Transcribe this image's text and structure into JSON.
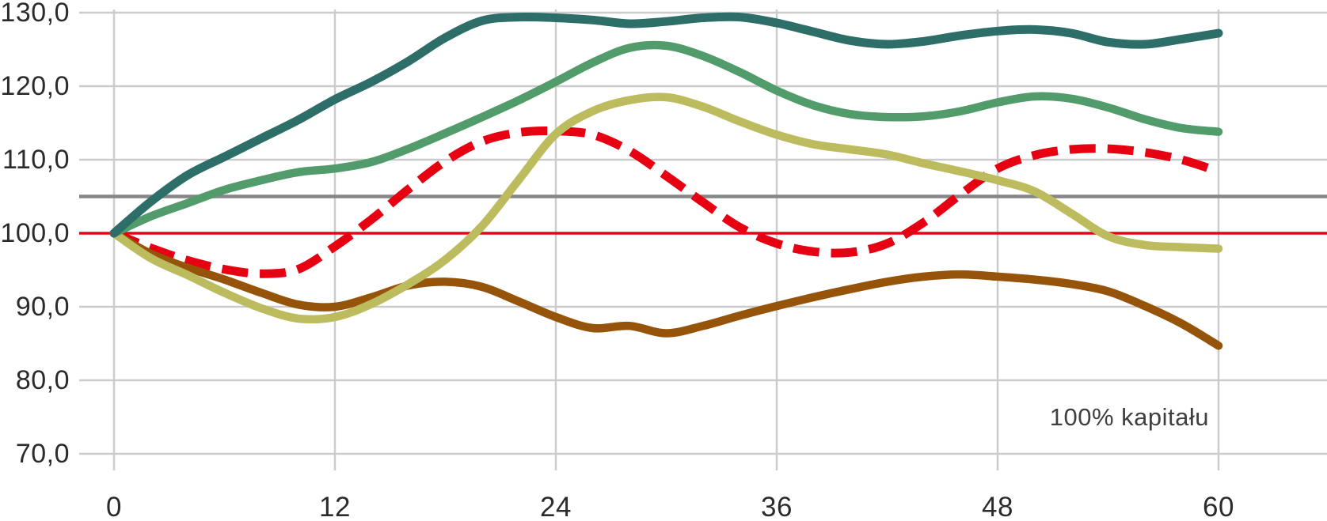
{
  "chart_data": {
    "type": "line",
    "title": "",
    "annotation": "100% kapitału",
    "grid": true,
    "grid_color": "#cbcbcb",
    "label_color": "#2b2b2b",
    "xlim": [
      0,
      60
    ],
    "ylim": [
      70,
      130
    ],
    "x_ticks": [
      {
        "value": 0,
        "label": "0"
      },
      {
        "value": 12,
        "label": "12"
      },
      {
        "value": 24,
        "label": "24"
      },
      {
        "value": 36,
        "label": "36"
      },
      {
        "value": 48,
        "label": "48"
      },
      {
        "value": 60,
        "label": "60"
      }
    ],
    "y_ticks": [
      {
        "value": 130,
        "label": "130,0"
      },
      {
        "value": 120,
        "label": "120,0"
      },
      {
        "value": 110,
        "label": "110,0"
      },
      {
        "value": 100,
        "label": "100,0"
      },
      {
        "value": 90,
        "label": "90,0"
      },
      {
        "value": 80,
        "label": "80,0"
      },
      {
        "value": 70,
        "label": "70,0"
      }
    ],
    "reference_lines": [
      {
        "name": "level-105-line",
        "value": 105,
        "color": "#868686",
        "width": 4.5
      },
      {
        "name": "capital-100-line",
        "value": 100,
        "color": "#e30613",
        "width": 3.5
      }
    ],
    "x_step": 2,
    "series": [
      {
        "name": "red-dashed",
        "color": "#e60012",
        "width": 11,
        "dash": "33 15",
        "values": [
          100,
          98.0,
          96.3,
          95.1,
          94.5,
          95.1,
          98.2,
          101.9,
          106.0,
          109.8,
          112.5,
          113.7,
          113.9,
          113.4,
          111.2,
          107.8,
          104.2,
          100.8,
          98.6,
          97.5,
          97.4,
          98.6,
          101.5,
          105.3,
          108.8,
          110.6,
          111.4,
          111.5,
          111.0,
          110.0,
          108.4
        ]
      },
      {
        "name": "brown",
        "color": "#96540a",
        "width": 10.5,
        "dash": null,
        "values": [
          100,
          97.2,
          95.3,
          93.7,
          91.9,
          90.3,
          90.0,
          91.3,
          92.9,
          93.4,
          92.7,
          90.7,
          88.6,
          87.1,
          87.4,
          86.4,
          87.4,
          88.8,
          90.1,
          91.3,
          92.4,
          93.4,
          94.1,
          94.4,
          94.1,
          93.7,
          93.1,
          92.1,
          90.1,
          87.7,
          84.7
        ]
      },
      {
        "name": "olive",
        "color": "#bcbc5f",
        "width": 10.5,
        "dash": null,
        "values": [
          100,
          96.6,
          94.3,
          91.9,
          89.8,
          88.4,
          88.6,
          90.4,
          93.1,
          96.4,
          101.0,
          107.3,
          113.5,
          116.6,
          118.1,
          118.5,
          117.2,
          115.2,
          113.4,
          112.1,
          111.4,
          110.7,
          109.5,
          108.4,
          107.2,
          105.7,
          102.7,
          99.6,
          98.4,
          98.1,
          97.9
        ]
      },
      {
        "name": "green",
        "color": "#529c6b",
        "width": 10.5,
        "dash": null,
        "values": [
          100,
          102.3,
          104.1,
          105.9,
          107.2,
          108.3,
          108.8,
          109.7,
          111.5,
          113.6,
          115.8,
          118.1,
          120.6,
          123.2,
          125.2,
          125.5,
          124.1,
          121.9,
          119.4,
          117.4,
          116.2,
          115.8,
          115.9,
          116.6,
          117.8,
          118.6,
          118.3,
          117.1,
          115.5,
          114.3,
          113.8
        ]
      },
      {
        "name": "teal",
        "color": "#2d6e68",
        "width": 11,
        "dash": null,
        "values": [
          100,
          104.3,
          107.9,
          110.4,
          112.9,
          115.4,
          118.2,
          120.6,
          123.4,
          126.6,
          128.9,
          129.4,
          129.3,
          129.0,
          128.5,
          128.8,
          129.3,
          129.4,
          128.6,
          127.4,
          126.2,
          125.7,
          126.1,
          126.9,
          127.5,
          127.7,
          127.2,
          126.0,
          125.7,
          126.4,
          127.2
        ]
      }
    ]
  }
}
